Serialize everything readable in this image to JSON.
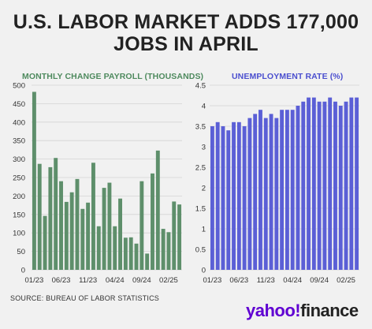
{
  "title": "U.S. LABOR MARKET ADDS 177,000 JOBS IN APRIL",
  "source": "SOURCE: BUREAU OF LABOR STATISTICS",
  "logo": {
    "brand": "yahoo!",
    "product": "finance"
  },
  "colors": {
    "payroll": "#5e8f6b",
    "unemployment": "#5b5fd6",
    "payroll_label": "#4e8a5e",
    "unemployment_label": "#4b4fcf"
  },
  "chart_data": [
    {
      "type": "bar",
      "title": "MONTHLY CHANGE PAYROLL (THOUSANDS)",
      "x_tick_labels": [
        "01/23",
        "06/23",
        "11/23",
        "04/24",
        "09/24",
        "02/25"
      ],
      "y_ticks": [
        0,
        50,
        100,
        150,
        200,
        250,
        300,
        350,
        400,
        450,
        500
      ],
      "ylim": [
        0,
        500
      ],
      "grid": true,
      "series": [
        {
          "values": [
            482,
            287,
            146,
            278,
            303,
            240,
            184,
            210,
            246,
            165,
            182,
            290,
            118,
            222,
            236,
            118,
            193,
            87,
            88,
            71,
            240,
            44,
            261,
            323,
            111,
            102,
            185,
            177
          ]
        }
      ]
    },
    {
      "type": "bar",
      "title": "UNEMPLOYMENT RATE (%)",
      "x_tick_labels": [
        "01/23",
        "06/23",
        "11/23",
        "04/24",
        "09/24",
        "02/25"
      ],
      "y_ticks": [
        0,
        0.5,
        1,
        1.5,
        2,
        2.5,
        3,
        3.5,
        4,
        4.5
      ],
      "y_tick_labels": [
        "0",
        "0.5",
        "1",
        "1.5",
        "2",
        "2.5",
        "3",
        "3.5",
        "4",
        "4.5"
      ],
      "ylim": [
        0,
        4.5
      ],
      "grid": true,
      "series": [
        {
          "values": [
            3.5,
            3.6,
            3.5,
            3.4,
            3.6,
            3.6,
            3.5,
            3.7,
            3.8,
            3.9,
            3.7,
            3.8,
            3.7,
            3.9,
            3.9,
            3.9,
            4.0,
            4.1,
            4.2,
            4.2,
            4.1,
            4.1,
            4.2,
            4.1,
            4.0,
            4.1,
            4.2,
            4.2
          ]
        }
      ]
    }
  ]
}
